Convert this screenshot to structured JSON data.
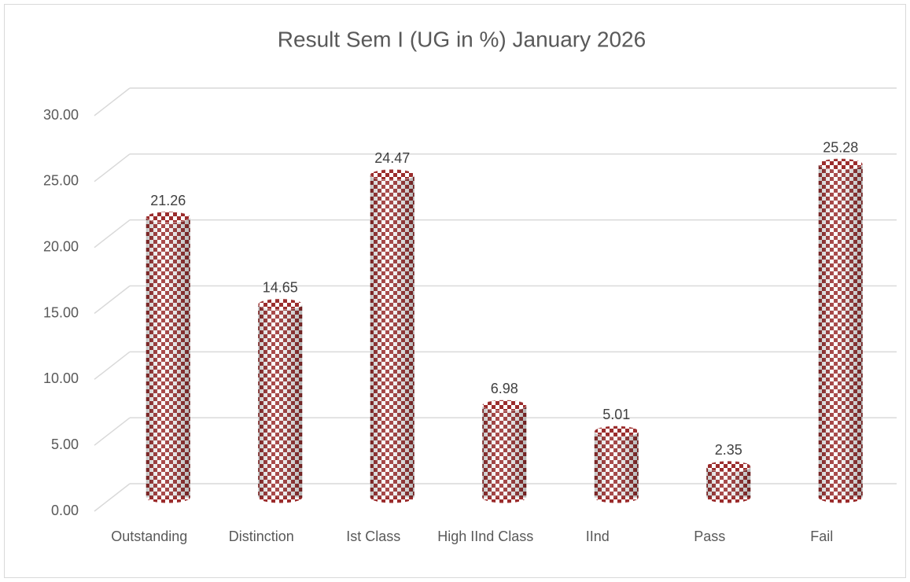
{
  "chart_data": {
    "type": "bar",
    "title": "Result Sem I (UG in %) January 2026",
    "categories": [
      "Outstanding",
      "Distinction",
      "Ist Class",
      "High IInd Class",
      "IInd",
      "Pass",
      "Fail"
    ],
    "values": [
      21.26,
      14.65,
      24.47,
      6.98,
      5.01,
      2.35,
      25.28
    ],
    "color": "#9b2c2c",
    "ylim": [
      0,
      30
    ],
    "yticks": [
      {
        "value": 0,
        "label": "0.00"
      },
      {
        "value": 5,
        "label": "5.00"
      },
      {
        "value": 10,
        "label": "10.00"
      },
      {
        "value": 15,
        "label": "15.00"
      },
      {
        "value": 20,
        "label": "20.00"
      },
      {
        "value": 25,
        "label": "25.00"
      },
      {
        "value": 30,
        "label": "30.00"
      }
    ],
    "grid": true
  }
}
